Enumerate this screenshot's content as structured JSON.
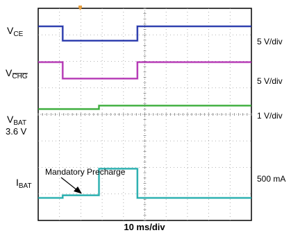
{
  "chart_data": {
    "type": "line",
    "xlabel": "10 ms/div",
    "grid": true,
    "divisions": {
      "x": 10,
      "y": 8
    },
    "xlim": [
      0,
      10
    ],
    "ylim": [
      0,
      8
    ],
    "channels": [
      {
        "id": "vce",
        "label_main": "V",
        "label_sub": "CE",
        "sub_overline": false,
        "scale": "5 V/div",
        "color": "#1d2fa8",
        "x": [
          0,
          1.15,
          1.15,
          4.65,
          4.65,
          10
        ],
        "y": [
          7.32,
          7.32,
          6.78,
          6.78,
          7.32,
          7.32
        ]
      },
      {
        "id": "vchg",
        "label_main": "V",
        "label_sub": "CHG",
        "sub_overline": true,
        "scale": "5 V/div",
        "color": "#b02ab0",
        "x": [
          0,
          1.15,
          1.15,
          4.65,
          4.65,
          10
        ],
        "y": [
          5.97,
          5.97,
          5.35,
          5.35,
          5.97,
          5.97
        ]
      },
      {
        "id": "vbat",
        "label_main": "V",
        "label_sub": "BAT",
        "sub_overline": false,
        "scale": "1 V/div",
        "color": "#2fa82f",
        "x": [
          0,
          2.85,
          2.85,
          10
        ],
        "y": [
          4.2,
          4.2,
          4.33,
          4.33
        ],
        "extra_label": "3.6 V"
      },
      {
        "id": "ibat",
        "label_main": "I",
        "label_sub": "BAT",
        "sub_overline": false,
        "scale": "500 mA",
        "color": "#19a9a9",
        "x": [
          0,
          1.15,
          1.15,
          2.85,
          2.85,
          4.65,
          4.65,
          10
        ],
        "y": [
          0.85,
          0.85,
          0.95,
          0.95,
          1.95,
          1.95,
          0.85,
          0.85
        ]
      }
    ],
    "annotation": {
      "text": "Mandatory Precharge",
      "points_to": {
        "x": 1.5,
        "y": 0.95
      }
    },
    "trigger_marker": {
      "x": 1.15,
      "color": "#e8a040"
    }
  }
}
